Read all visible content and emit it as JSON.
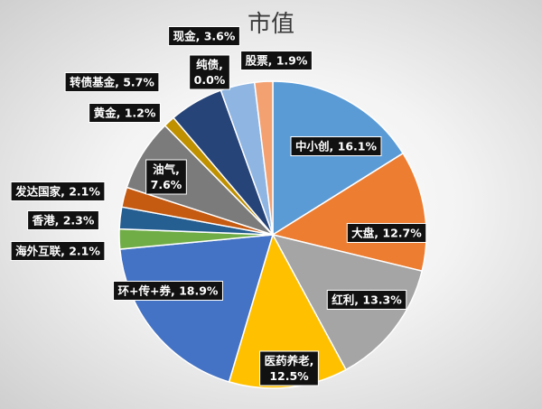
{
  "chart_data": {
    "type": "pie",
    "title": "市值",
    "slices": [
      {
        "label": "中小创, 16.1%",
        "value": 16.1,
        "color": "#5b9bd5"
      },
      {
        "label": "大盘, 12.7%",
        "value": 12.7,
        "color": "#ed7d31"
      },
      {
        "label": "红利, 13.3%",
        "value": 13.3,
        "color": "#a5a5a5"
      },
      {
        "label": "医药养老, 12.5%",
        "value": 12.5,
        "color": "#ffc000"
      },
      {
        "label": "环+传+券, 18.9%",
        "value": 18.9,
        "color": "#4472c4"
      },
      {
        "label": "海外互联, 2.1%",
        "value": 2.1,
        "color": "#70ad47"
      },
      {
        "label": "香港, 2.3%",
        "value": 2.3,
        "color": "#255e91"
      },
      {
        "label": "发达国家, 2.1%",
        "value": 2.1,
        "color": "#c55a11"
      },
      {
        "label": "油气, 7.6%",
        "value": 7.6,
        "color": "#7b7b7b"
      },
      {
        "label": "黄金, 1.2%",
        "value": 1.2,
        "color": "#bf9000"
      },
      {
        "label": "转债基金, 5.7%",
        "value": 5.7,
        "color": "#264478"
      },
      {
        "label": "纯债, 0.0%",
        "value": 0.0,
        "color": "#43682b"
      },
      {
        "label": "现金, 3.6%",
        "value": 3.6,
        "color": "#8fb6e3"
      },
      {
        "label": "股票, 1.9%",
        "value": 1.9,
        "color": "#f4a172"
      }
    ]
  }
}
